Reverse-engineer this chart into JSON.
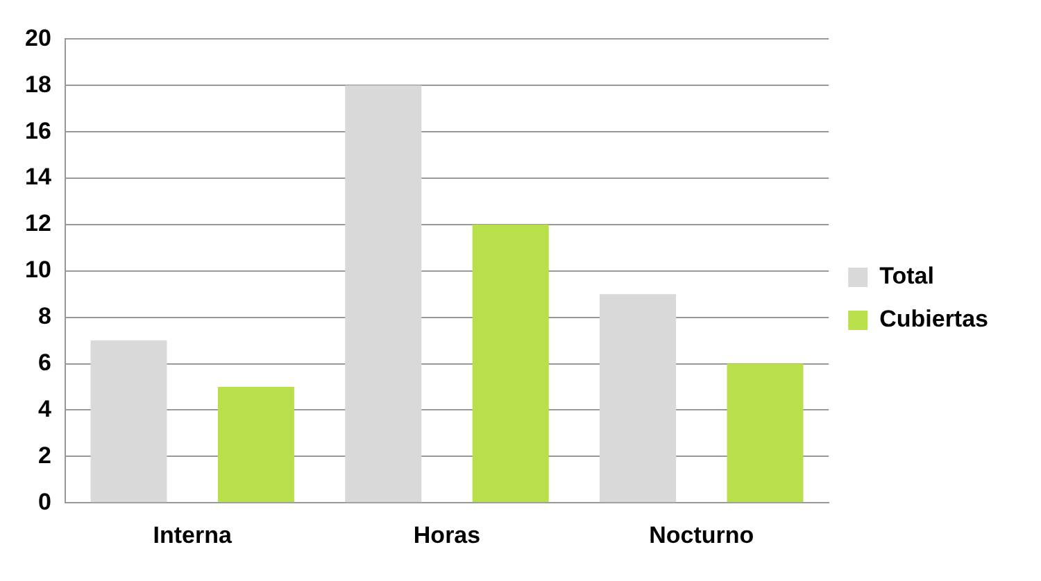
{
  "chart_data": {
    "type": "bar",
    "categories": [
      "Interna",
      "Horas",
      "Nocturno"
    ],
    "series": [
      {
        "name": "Total",
        "color": "#d9d9d9",
        "values": [
          7,
          18,
          9
        ]
      },
      {
        "name": "Cubiertas",
        "color": "#b9e04a",
        "values": [
          5,
          12,
          6
        ]
      }
    ],
    "ylim": [
      0,
      20
    ],
    "yticks": [
      0,
      2,
      4,
      6,
      8,
      10,
      12,
      14,
      16,
      18,
      20
    ],
    "grid": "y",
    "legend": "right"
  }
}
